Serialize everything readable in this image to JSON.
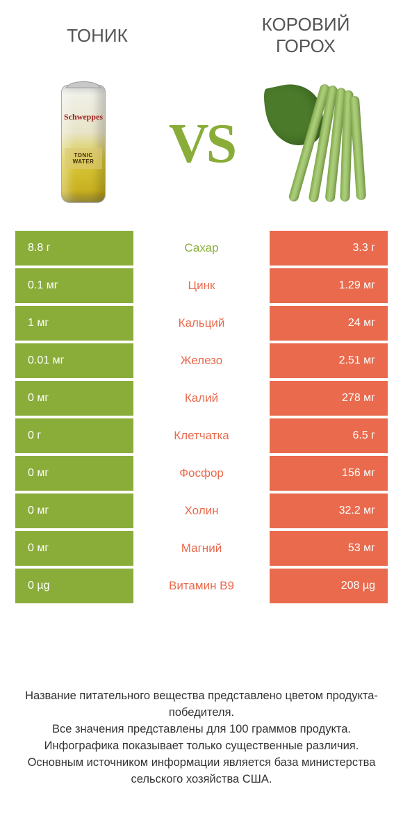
{
  "colors": {
    "green": "#8aad3a",
    "orange": "#e96a4d",
    "green_text": "#8aad3a",
    "orange_text": "#e96a4d"
  },
  "header": {
    "left_title": "ТОНИК",
    "right_title": "КОРОВИЙ ГОРОХ",
    "vs": "VS"
  },
  "can": {
    "brand": "Schweppes",
    "label": "TONIC WATER"
  },
  "rows": [
    {
      "nutrient": "Сахар",
      "left": "8.8 г",
      "right": "3.3 г",
      "winner": "left"
    },
    {
      "nutrient": "Цинк",
      "left": "0.1 мг",
      "right": "1.29 мг",
      "winner": "right"
    },
    {
      "nutrient": "Кальций",
      "left": "1 мг",
      "right": "24 мг",
      "winner": "right"
    },
    {
      "nutrient": "Железо",
      "left": "0.01 мг",
      "right": "2.51 мг",
      "winner": "right"
    },
    {
      "nutrient": "Калий",
      "left": "0 мг",
      "right": "278 мг",
      "winner": "right"
    },
    {
      "nutrient": "Клетчатка",
      "left": "0 г",
      "right": "6.5 г",
      "winner": "right"
    },
    {
      "nutrient": "Фосфор",
      "left": "0 мг",
      "right": "156 мг",
      "winner": "right"
    },
    {
      "nutrient": "Холин",
      "left": "0 мг",
      "right": "32.2 мг",
      "winner": "right"
    },
    {
      "nutrient": "Магний",
      "left": "0 мг",
      "right": "53 мг",
      "winner": "right"
    },
    {
      "nutrient": "Витамин B9",
      "left": "0 µg",
      "right": "208 µg",
      "winner": "right"
    }
  ],
  "footnote": {
    "l1": "Название питательного вещества представлено цветом продукта-победителя.",
    "l2": "Все значения представлены для 100 граммов продукта.",
    "l3": "Инфографика показывает только существенные различия.",
    "l4": "Основным источником информации является база министерства сельского хозяйства США."
  }
}
